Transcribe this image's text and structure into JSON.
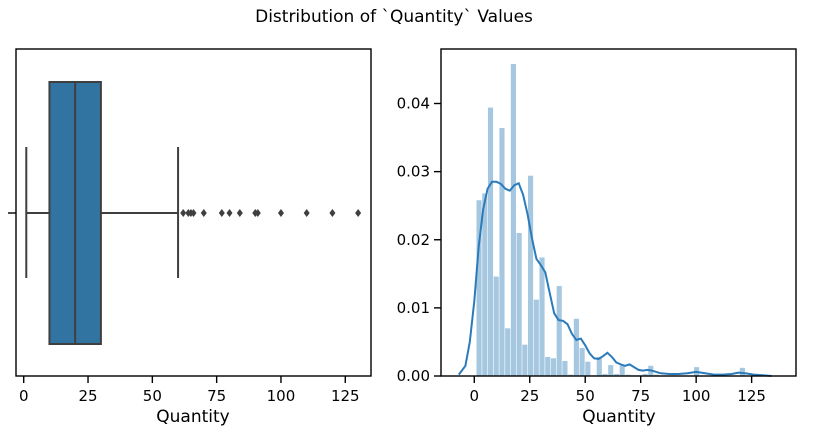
{
  "figure": {
    "title": "Distribution of `Quantity` Values"
  },
  "chart_data": [
    {
      "type": "box",
      "xlabel": "Quantity",
      "xlim": [
        -3,
        135
      ],
      "xticks": [
        0,
        25,
        50,
        75,
        100,
        125
      ],
      "tick_labels": [
        "0",
        "25",
        "50",
        "75",
        "100",
        "125"
      ],
      "box": {
        "whisker_low": 1,
        "q1": 10,
        "median": 20,
        "q3": 30,
        "whisker_high": 60
      },
      "outliers": [
        62,
        64,
        65,
        66,
        70,
        77,
        80,
        84,
        90,
        91,
        100,
        110,
        120,
        130
      ],
      "color": "#3274a1",
      "line_color": "#3f3f3f",
      "grid": false
    },
    {
      "type": "histogram",
      "xlabel": "Quantity",
      "xlim": [
        -15,
        145
      ],
      "ylim": [
        0,
        0.048
      ],
      "xticks": [
        0,
        25,
        50,
        75,
        100,
        125
      ],
      "tick_labels": [
        "0",
        "25",
        "50",
        "75",
        "100",
        "125"
      ],
      "yticks": [
        0,
        0.01,
        0.02,
        0.03,
        0.04
      ],
      "ytick_labels": [
        "0.00",
        "0.01",
        "0.02",
        "0.03",
        "0.04"
      ],
      "bin_width": 2.58,
      "bins": [
        {
          "x": 1.0,
          "y": 0.0258
        },
        {
          "x": 3.58,
          "y": 0.0268
        },
        {
          "x": 6.16,
          "y": 0.0394
        },
        {
          "x": 8.74,
          "y": 0.0146
        },
        {
          "x": 11.32,
          "y": 0.0364
        },
        {
          "x": 13.9,
          "y": 0.007
        },
        {
          "x": 16.48,
          "y": 0.0458
        },
        {
          "x": 19.06,
          "y": 0.021
        },
        {
          "x": 21.64,
          "y": 0.0046
        },
        {
          "x": 24.22,
          "y": 0.0294
        },
        {
          "x": 26.8,
          "y": 0.0112
        },
        {
          "x": 29.38,
          "y": 0.0174
        },
        {
          "x": 31.96,
          "y": 0.0028
        },
        {
          "x": 34.54,
          "y": 0.0026
        },
        {
          "x": 37.12,
          "y": 0.0132
        },
        {
          "x": 39.7,
          "y": 0.0022
        },
        {
          "x": 42.28,
          "y": 0.0002
        },
        {
          "x": 44.86,
          "y": 0.0084
        },
        {
          "x": 47.44,
          "y": 0.0041
        },
        {
          "x": 50.02,
          "y": 0.0021
        },
        {
          "x": 52.6,
          "y": 0.0001
        },
        {
          "x": 55.18,
          "y": 0.0028
        },
        {
          "x": 57.76,
          "y": 0.0003
        },
        {
          "x": 60.34,
          "y": 0.0016
        },
        {
          "x": 62.92,
          "y": 0.0003
        },
        {
          "x": 65.5,
          "y": 0.0015
        },
        {
          "x": 68.08,
          "y": 0.0002
        },
        {
          "x": 70.66,
          "y": 0.0001
        },
        {
          "x": 73.24,
          "y": 0.0001
        },
        {
          "x": 75.82,
          "y": 0.0003
        },
        {
          "x": 78.4,
          "y": 0.0015
        },
        {
          "x": 80.98,
          "y": 0.0002
        },
        {
          "x": 88.72,
          "y": 0.0001
        },
        {
          "x": 99.04,
          "y": 0.0013
        },
        {
          "x": 109.36,
          "y": 0.0002
        },
        {
          "x": 119.68,
          "y": 0.0012
        }
      ],
      "kde": {
        "x": [
          -7,
          -4,
          -2,
          0,
          2,
          4,
          6,
          8,
          10,
          12,
          14,
          16,
          18,
          20,
          22,
          24,
          26,
          28,
          30,
          32,
          34,
          36,
          38,
          40,
          42,
          44,
          46,
          48,
          50,
          52,
          54,
          56,
          58,
          60,
          62,
          64,
          66,
          68,
          70,
          72,
          74,
          76,
          78,
          80,
          84,
          88,
          92,
          96,
          100,
          104,
          108,
          112,
          116,
          119,
          122,
          126,
          130,
          134
        ],
        "y": [
          0.0002,
          0.0015,
          0.005,
          0.011,
          0.019,
          0.0245,
          0.0275,
          0.0285,
          0.0285,
          0.0282,
          0.0275,
          0.0272,
          0.028,
          0.0283,
          0.0266,
          0.0238,
          0.0202,
          0.0172,
          0.0163,
          0.0152,
          0.0122,
          0.0092,
          0.0082,
          0.0081,
          0.0076,
          0.0062,
          0.0053,
          0.0055,
          0.0045,
          0.0033,
          0.0026,
          0.0025,
          0.0029,
          0.0034,
          0.0028,
          0.002,
          0.0017,
          0.0015,
          0.0017,
          0.0013,
          0.0009,
          0.0008,
          0.0009,
          0.0008,
          0.0004,
          0.0003,
          0.0003,
          0.0004,
          0.0006,
          0.0004,
          0.0002,
          0.0002,
          0.0003,
          0.0005,
          0.0004,
          0.0002,
          0.0001,
          0.0
        ],
        "color": "#2b7bba"
      },
      "bar_color": "#a6c7e0",
      "grid": false
    }
  ]
}
